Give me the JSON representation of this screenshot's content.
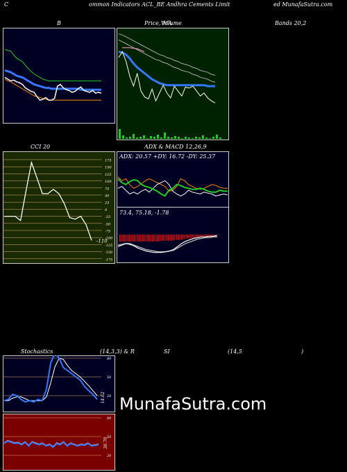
{
  "header": {
    "left": "C",
    "mid_left": "ommon Indicators ACL_BE Andhra Cements Limit",
    "right": "ed MunafaSutra.com"
  },
  "titles": {
    "bollinger_b": "B",
    "price_a": "Price, MA",
    "price_b": "Volume",
    "bands": "Bands 20,2",
    "cci": "CCI 20",
    "adx_macd": "ADX & MACD 12,26,9",
    "stoch_a": "Stochastics",
    "stoch_b": "(14,3,3) & R",
    "stoch_c": "SI",
    "stoch_d": "(14,5",
    "stoch_e": ")"
  },
  "watermark": "MunafaSutra.com",
  "colors": {
    "bg": "#000000",
    "navy": "#000022",
    "green_bg": "#002200",
    "olive_bg": "#1a2a00",
    "rsi_bg": "#7a0000",
    "blue": "#3377ff",
    "orange": "#ff8800",
    "green": "#22cc22",
    "white": "#ffffff",
    "red": "#ff0000",
    "pink": "#ff99cc"
  },
  "chart_data": [
    {
      "type": "line",
      "name": "bollinger",
      "series": [
        {
          "values": [
            80,
            79,
            78,
            74,
            70,
            68,
            66,
            62,
            58,
            55,
            52,
            50,
            48,
            46,
            45,
            44,
            44,
            44,
            44,
            44,
            44,
            44,
            44,
            44,
            44,
            44,
            44,
            44,
            44,
            44,
            44,
            44,
            44,
            44
          ]
        },
        {
          "values": [
            56,
            55,
            54,
            52,
            50,
            49,
            48,
            46,
            44,
            42,
            40,
            39,
            38,
            37,
            36,
            36,
            35,
            35,
            35,
            35,
            35,
            35,
            35,
            35,
            35,
            35,
            34,
            34,
            34,
            34,
            34,
            34,
            34,
            34
          ]
        },
        {
          "values": [
            46,
            44,
            43,
            41,
            39,
            37,
            35,
            33,
            31,
            29,
            27,
            26,
            25,
            24,
            23,
            22,
            22,
            22,
            22,
            22,
            22,
            22,
            22,
            22,
            22,
            22,
            22,
            22,
            22,
            22,
            22,
            22,
            22,
            22
          ]
        },
        {
          "values": [
            48,
            46,
            44,
            45,
            43,
            42,
            40,
            36,
            34,
            32,
            31,
            26,
            22,
            23,
            25,
            22,
            22,
            24,
            38,
            40,
            36,
            34,
            33,
            31,
            32,
            35,
            37,
            33,
            32,
            31,
            33,
            30,
            31,
            30
          ]
        }
      ]
    },
    {
      "type": "line",
      "name": "price_ma_volume",
      "series": [
        {
          "values": [
            98,
            97,
            95,
            93,
            91,
            89,
            87,
            85,
            83,
            81,
            79,
            77,
            76,
            74,
            73,
            71,
            70,
            68,
            67,
            66,
            64,
            63,
            61,
            60,
            59,
            57,
            56
          ]
        },
        {
          "values": [
            92,
            90,
            88,
            86,
            84,
            82,
            80,
            78,
            76,
            74,
            72,
            71,
            69,
            68,
            66,
            64,
            63,
            61,
            60,
            59,
            57,
            56,
            54,
            53,
            52,
            50,
            49
          ]
        },
        {
          "values": [
            80,
            79,
            77,
            73,
            68,
            64,
            61,
            58,
            55,
            52,
            50,
            48,
            47,
            46,
            46,
            46,
            46,
            46,
            46,
            46,
            46,
            46,
            46,
            46,
            45,
            45,
            45
          ]
        },
        {
          "values": [
            74,
            80,
            70,
            55,
            45,
            58,
            40,
            34,
            32,
            42,
            30,
            38,
            46,
            38,
            33,
            45,
            40,
            35,
            44,
            43,
            45,
            40,
            35,
            38,
            33,
            30,
            28
          ]
        }
      ],
      "volume": [
        14,
        5,
        2,
        3,
        7,
        2,
        3,
        5,
        1,
        4,
        3,
        6,
        2,
        9,
        3,
        2,
        4,
        3,
        1,
        3,
        2,
        1,
        3,
        2,
        5,
        2,
        1,
        3,
        6,
        2
      ]
    },
    {
      "type": "line",
      "name": "cci",
      "ylabels": [
        "175",
        "150",
        "125",
        "100",
        "75",
        "50",
        "25",
        "0",
        "-25",
        "-50",
        "-75",
        "-100",
        "-125",
        "-150",
        "-175"
      ],
      "values": [
        -25,
        -25,
        -25,
        -40,
        65,
        165,
        110,
        55,
        55,
        70,
        55,
        20,
        -30,
        -35,
        -25,
        -55,
        -110
      ],
      "last": "-110"
    },
    {
      "type": "line",
      "name": "adx_macd",
      "adx_label": "ADX: 20.57 +DY: 16.72 -DY: 25.37",
      "macd_label": "73.4, 75.18, -1.78",
      "adx": [
        28,
        24,
        22,
        25,
        27,
        26,
        22,
        20,
        19,
        17,
        15,
        12,
        10,
        16,
        18,
        22,
        21,
        19,
        18,
        17,
        17,
        18,
        17,
        15,
        14,
        14,
        16,
        15,
        15
      ],
      "pdi": [
        18,
        20,
        16,
        12,
        14,
        12,
        15,
        17,
        14,
        18,
        22,
        24,
        26,
        22,
        15,
        12,
        10,
        12,
        16,
        14,
        13,
        12,
        14,
        13,
        12,
        10,
        11,
        12,
        11
      ],
      "ndi": [
        30,
        26,
        28,
        22,
        18,
        20,
        23,
        26,
        28,
        26,
        24,
        22,
        20,
        15,
        16,
        20,
        28,
        26,
        22,
        20,
        18,
        17,
        18,
        20,
        22,
        21,
        19,
        18,
        18
      ],
      "macd": [
        12,
        14,
        16,
        15,
        13,
        10,
        8,
        6,
        5,
        4,
        4,
        4,
        5,
        6,
        8,
        12,
        16,
        19,
        21,
        23,
        24,
        25,
        25,
        26,
        26,
        27
      ],
      "signal": [
        14,
        15,
        16,
        16,
        14,
        12,
        10,
        8,
        7,
        6,
        5,
        5,
        5,
        6,
        7,
        10,
        13,
        16,
        18,
        20,
        22,
        23,
        24,
        24,
        25,
        25
      ],
      "hist": [
        9,
        9,
        9,
        9,
        9,
        9,
        9,
        9,
        9,
        9,
        9,
        9,
        9,
        9,
        9,
        9,
        9,
        9,
        9,
        9,
        9,
        9,
        9,
        9,
        9,
        8,
        8,
        8,
        8,
        8,
        8,
        8,
        8,
        8,
        7,
        7,
        7,
        7,
        7,
        6,
        6,
        5,
        5,
        5,
        4,
        4,
        4,
        4,
        3,
        3,
        3,
        3,
        3,
        3,
        3,
        3,
        3,
        3,
        3,
        3
      ]
    },
    {
      "type": "line",
      "name": "stochastics",
      "ylabels": [
        "80",
        "50",
        "20"
      ],
      "last": "14.62",
      "k": [
        12,
        14,
        22,
        20,
        14,
        10,
        12,
        10,
        14,
        12,
        30,
        72,
        88,
        80,
        65,
        60,
        55,
        50,
        45,
        35,
        28,
        22,
        14
      ],
      "d": [
        12,
        12,
        16,
        18,
        18,
        15,
        12,
        12,
        12,
        12,
        18,
        40,
        66,
        80,
        78,
        68,
        60,
        55,
        50,
        43,
        36,
        28,
        20
      ]
    },
    {
      "type": "line",
      "name": "rsi",
      "ylabels": [
        "80",
        "50",
        "20"
      ],
      "last": "36.70",
      "values": [
        40,
        44,
        42,
        40,
        41,
        38,
        42,
        36,
        42,
        40,
        38,
        40,
        36,
        38,
        34,
        40,
        38,
        42,
        36,
        40,
        38,
        36,
        38,
        37,
        40,
        36,
        37,
        38
      ]
    }
  ]
}
